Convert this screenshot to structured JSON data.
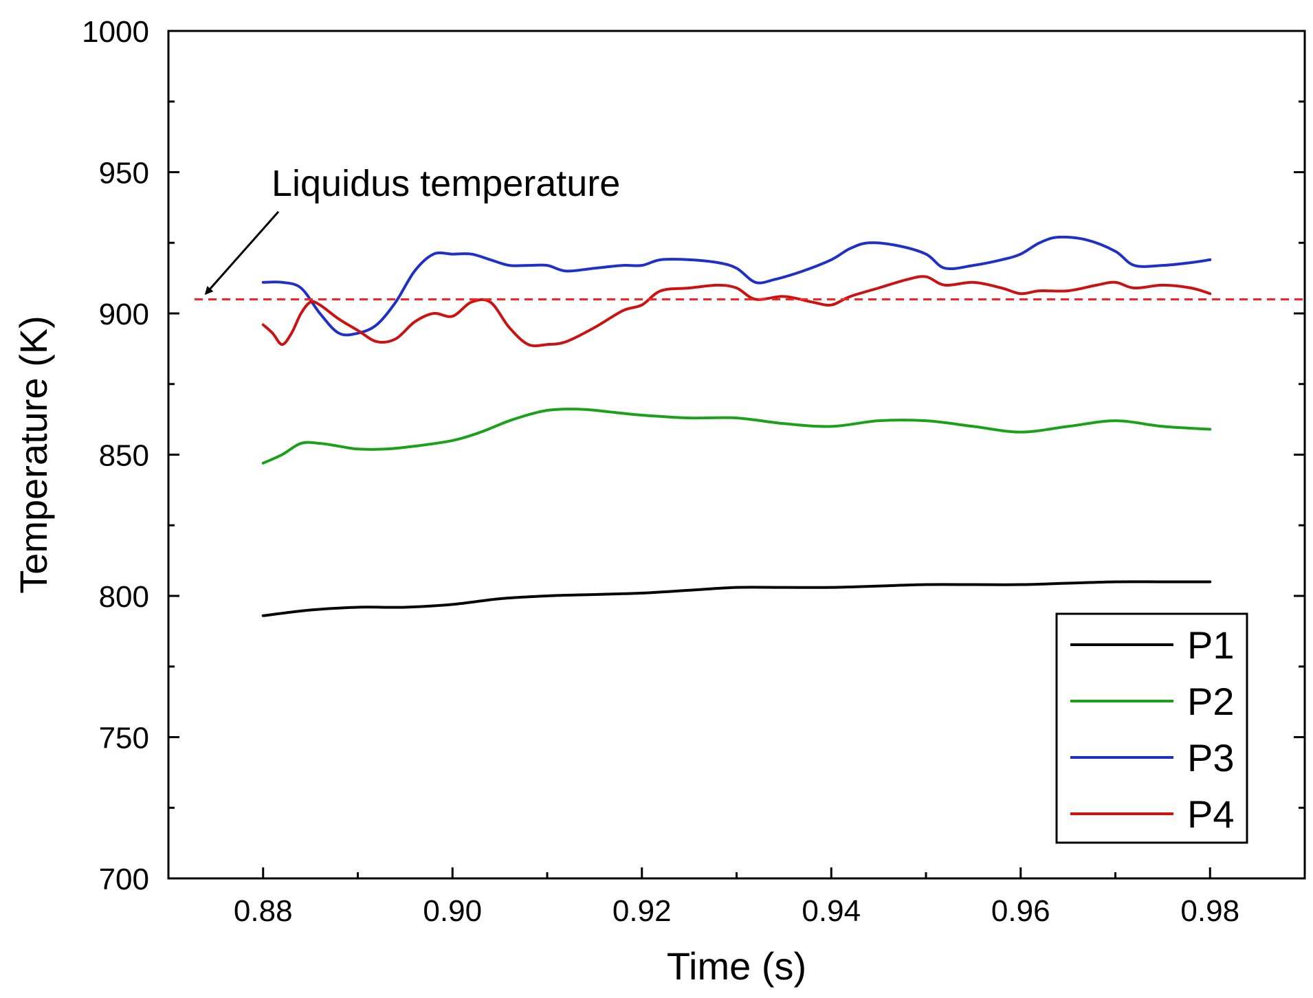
{
  "chart_data": {
    "type": "line",
    "title": "",
    "xlabel": "Time (s)",
    "ylabel": "Temperature (K)",
    "xlim": [
      0.87,
      0.99
    ],
    "ylim": [
      700,
      1000
    ],
    "xticks": [
      0.88,
      0.9,
      0.92,
      0.94,
      0.96,
      0.98
    ],
    "xtick_labels": [
      "0.88",
      "0.90",
      "0.92",
      "0.94",
      "0.96",
      "0.98"
    ],
    "yticks": [
      700,
      750,
      800,
      850,
      900,
      950,
      1000
    ],
    "ytick_labels": [
      "700",
      "750",
      "800",
      "850",
      "900",
      "950",
      "1000"
    ],
    "grid": false,
    "legend": {
      "position": "bottom-right"
    },
    "series": [
      {
        "name": "P1",
        "color": "#000000",
        "x": [
          0.88,
          0.885,
          0.89,
          0.895,
          0.9,
          0.905,
          0.91,
          0.915,
          0.92,
          0.925,
          0.93,
          0.935,
          0.94,
          0.945,
          0.95,
          0.955,
          0.96,
          0.965,
          0.97,
          0.975,
          0.98
        ],
        "y": [
          793,
          795,
          796,
          796,
          797,
          799,
          800,
          800.5,
          801,
          802,
          803,
          803,
          803,
          803.5,
          804,
          804,
          804,
          804.5,
          805,
          805,
          805
        ]
      },
      {
        "name": "P2",
        "color": "#1aa11a",
        "x": [
          0.88,
          0.882,
          0.884,
          0.886,
          0.888,
          0.89,
          0.893,
          0.896,
          0.9,
          0.903,
          0.906,
          0.909,
          0.911,
          0.914,
          0.917,
          0.92,
          0.925,
          0.93,
          0.935,
          0.94,
          0.945,
          0.95,
          0.955,
          0.96,
          0.965,
          0.97,
          0.975,
          0.98
        ],
        "y": [
          847,
          850,
          854,
          854,
          853,
          852,
          852,
          853,
          855,
          858,
          862,
          865,
          866,
          866,
          865,
          864,
          863,
          863,
          861,
          860,
          862,
          862,
          860,
          858,
          860,
          862,
          860,
          859
        ]
      },
      {
        "name": "P3",
        "color": "#1f2fc9",
        "x": [
          0.88,
          0.882,
          0.884,
          0.886,
          0.888,
          0.89,
          0.892,
          0.894,
          0.896,
          0.898,
          0.9,
          0.902,
          0.904,
          0.906,
          0.908,
          0.91,
          0.912,
          0.915,
          0.918,
          0.92,
          0.922,
          0.925,
          0.928,
          0.93,
          0.932,
          0.934,
          0.937,
          0.94,
          0.942,
          0.944,
          0.947,
          0.95,
          0.952,
          0.955,
          0.958,
          0.96,
          0.962,
          0.964,
          0.967,
          0.97,
          0.972,
          0.975,
          0.978,
          0.98
        ],
        "y": [
          911,
          911,
          909,
          900,
          893,
          893,
          896,
          904,
          915,
          921,
          921,
          921,
          919,
          917,
          917,
          917,
          915,
          916,
          917,
          917,
          919,
          919,
          918,
          916,
          911,
          912,
          915,
          919,
          923,
          925,
          924,
          921,
          916,
          917,
          919,
          921,
          925,
          927,
          926,
          922,
          917,
          917,
          918,
          919
        ]
      },
      {
        "name": "P4",
        "color": "#cc1111",
        "x": [
          0.88,
          0.881,
          0.882,
          0.883,
          0.884,
          0.885,
          0.886,
          0.888,
          0.89,
          0.892,
          0.894,
          0.896,
          0.898,
          0.9,
          0.902,
          0.904,
          0.906,
          0.908,
          0.91,
          0.912,
          0.915,
          0.918,
          0.92,
          0.922,
          0.925,
          0.928,
          0.93,
          0.932,
          0.935,
          0.938,
          0.94,
          0.942,
          0.945,
          0.948,
          0.95,
          0.952,
          0.955,
          0.958,
          0.96,
          0.962,
          0.965,
          0.968,
          0.97,
          0.972,
          0.975,
          0.978,
          0.98
        ],
        "y": [
          896,
          893,
          889,
          893,
          900,
          904,
          903,
          898,
          894,
          890,
          891,
          897,
          900,
          899,
          904,
          904,
          895,
          889,
          889,
          890,
          895,
          901,
          903,
          908,
          909,
          910,
          909,
          905,
          906,
          904,
          903,
          906,
          909,
          912,
          913,
          910,
          911,
          909,
          907,
          908,
          908,
          910,
          911,
          909,
          910,
          909,
          907
        ]
      }
    ],
    "reference_line": {
      "y": 905,
      "color": "#ff2020",
      "style": "dashed"
    },
    "annotations": [
      {
        "text": "Liquidus temperature",
        "points_to": {
          "x": 0.8735,
          "y": 905
        }
      }
    ]
  }
}
